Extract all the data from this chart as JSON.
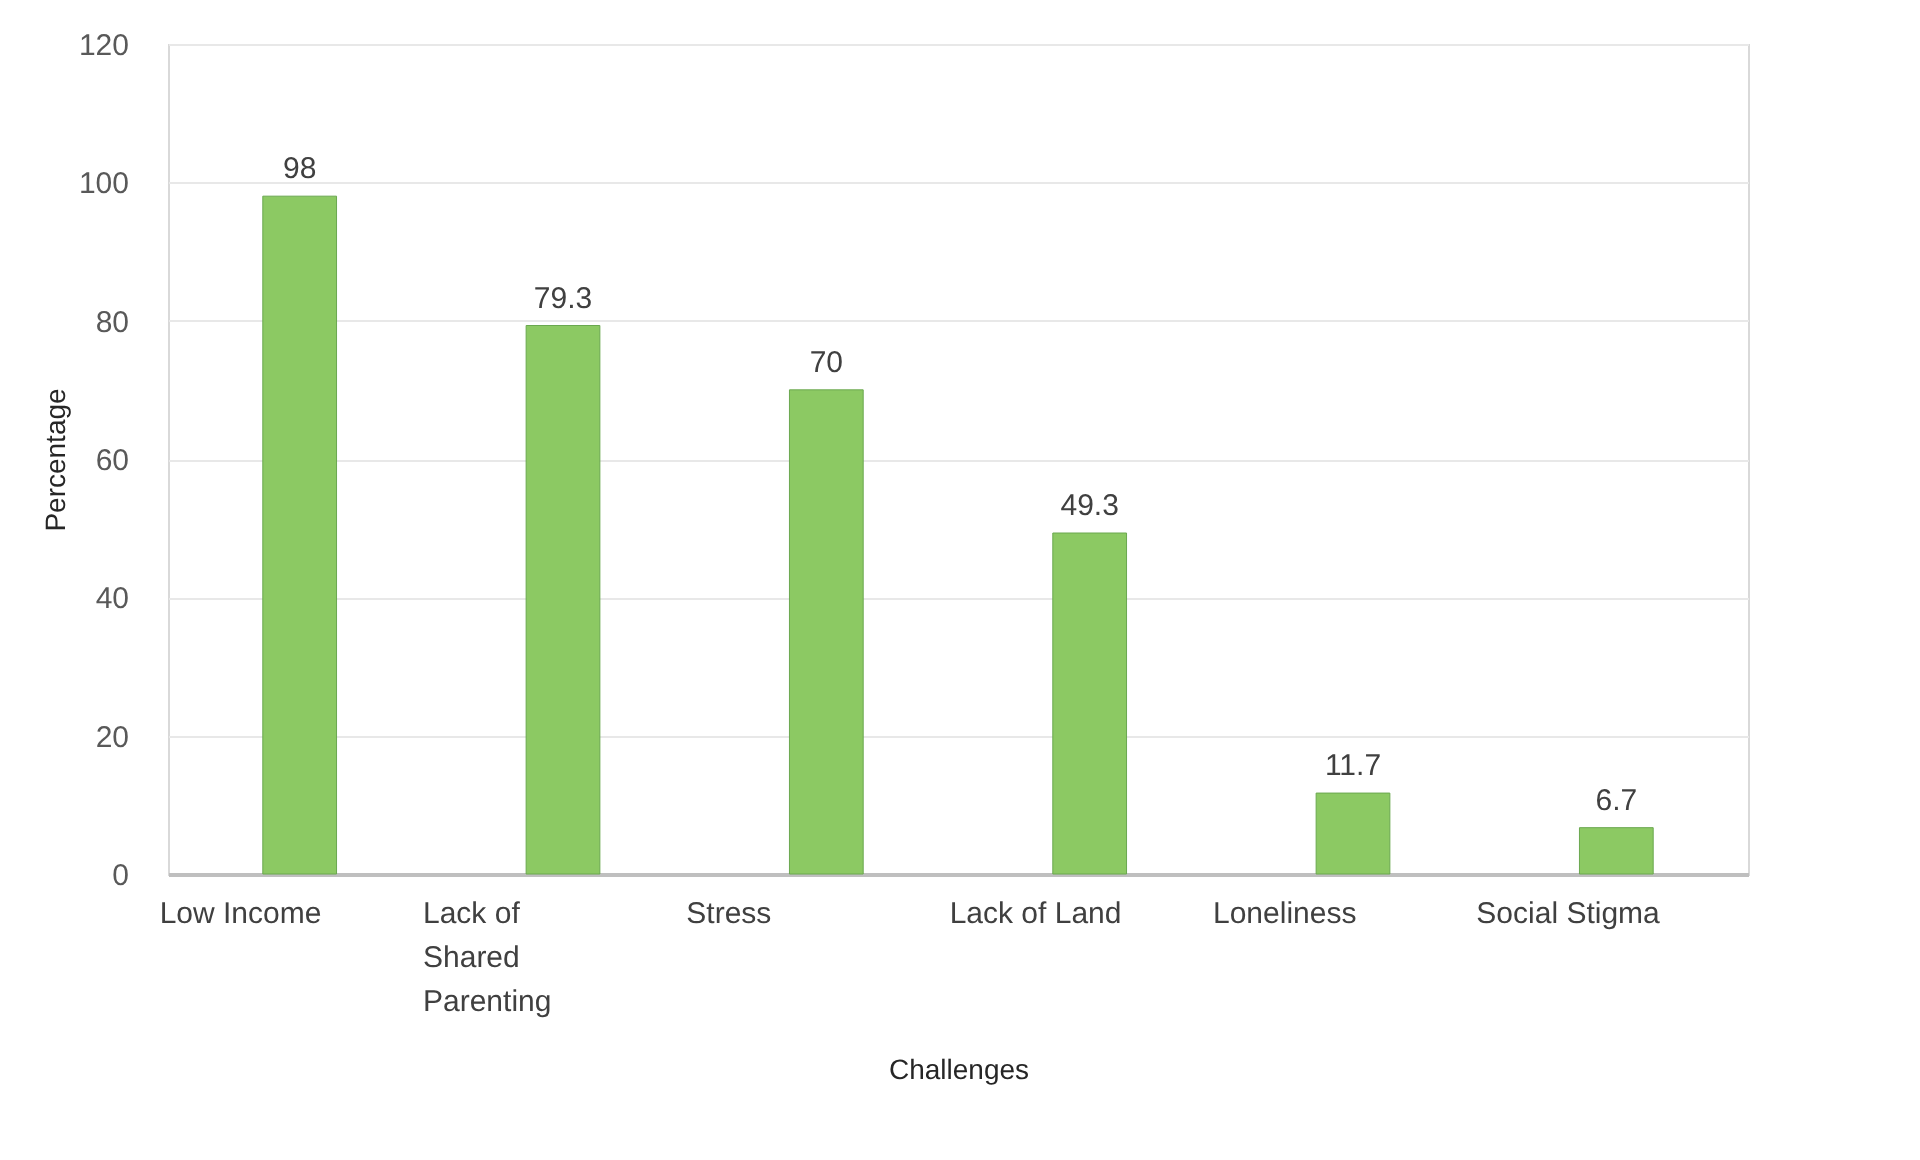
{
  "chart_data": {
    "type": "bar",
    "categories": [
      "Low Income",
      "Lack of Shared Parenting",
      "Stress",
      "Lack of Land",
      "Loneliness",
      "Social Stigma"
    ],
    "values": [
      98,
      79.3,
      70,
      49.3,
      11.7,
      6.7
    ],
    "color": "#8cc963",
    "xlabel": "Challenges",
    "ylabel": "Percentage",
    "ylim": [
      0,
      120
    ],
    "yticks": [
      0,
      20,
      40,
      60,
      80,
      100,
      120
    ],
    "grid": "y",
    "data_labels": true
  }
}
